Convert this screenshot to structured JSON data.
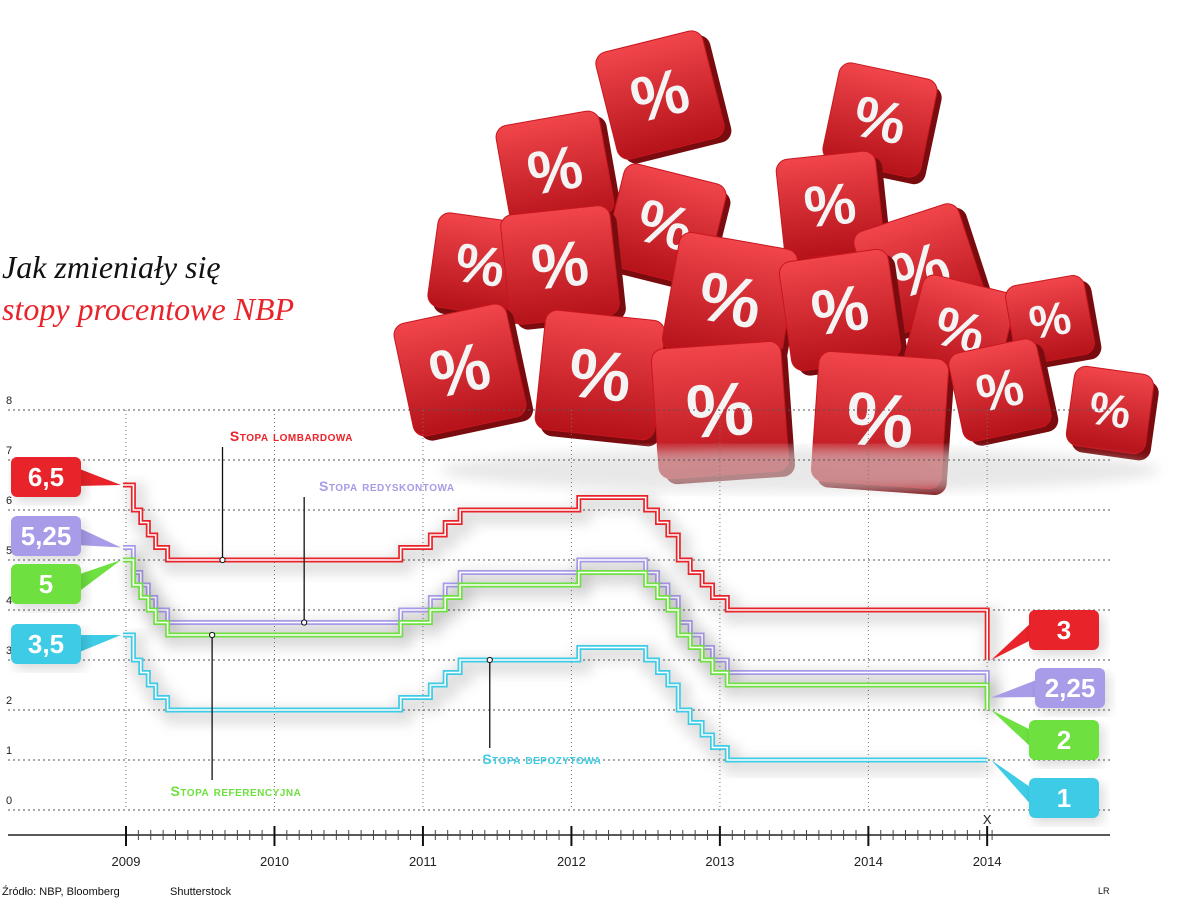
{
  "title_line1": "Jak zmieniały się",
  "title_line2": "stopy procentowe NBP",
  "source": "Źródło: NBP, Bloomberg",
  "photo_credit": "Shutterstock",
  "author_mark": "LR",
  "decoration": {
    "icon": "percent-dice-pile",
    "symbol": "%",
    "color": "#e8232a"
  },
  "chart_data": {
    "type": "line",
    "title": "Jak zmieniały się stopy procentowe NBP",
    "xlabel": "",
    "ylabel": "",
    "ylim": [
      0,
      8
    ],
    "xlim": [
      2009.0,
      2014.9
    ],
    "grid": true,
    "yticks": [
      "0",
      "1",
      "2",
      "3",
      "4",
      "5",
      "6",
      "7",
      "8"
    ],
    "xticks": [
      {
        "x": 2009.0,
        "label": "2009",
        "top": ""
      },
      {
        "x": 2010.0,
        "label": "2010",
        "top": ""
      },
      {
        "x": 2011.0,
        "label": "2011",
        "top": ""
      },
      {
        "x": 2012.0,
        "label": "2012",
        "top": ""
      },
      {
        "x": 2013.0,
        "label": "2013",
        "top": ""
      },
      {
        "x": 2014.0,
        "label": "2014",
        "top": ""
      },
      {
        "x": 2014.8,
        "label": "2014",
        "top": "X"
      }
    ],
    "series": [
      {
        "name": "Stopa lombardowa",
        "color": "#e8232a",
        "start_label": "6,5",
        "end_label": "3",
        "points": [
          [
            2008.98,
            6.5
          ],
          [
            2009.05,
            6.5
          ],
          [
            2009.05,
            6.0
          ],
          [
            2009.1,
            6.0
          ],
          [
            2009.1,
            5.75
          ],
          [
            2009.15,
            5.75
          ],
          [
            2009.15,
            5.5
          ],
          [
            2009.2,
            5.5
          ],
          [
            2009.2,
            5.25
          ],
          [
            2009.28,
            5.25
          ],
          [
            2009.28,
            5.0
          ],
          [
            2009.43,
            5.0
          ],
          [
            2009.43,
            5.0
          ],
          [
            2010.85,
            5.0
          ],
          [
            2010.85,
            5.25
          ],
          [
            2011.05,
            5.25
          ],
          [
            2011.05,
            5.5
          ],
          [
            2011.15,
            5.5
          ],
          [
            2011.15,
            5.75
          ],
          [
            2011.25,
            5.75
          ],
          [
            2011.25,
            6.0
          ],
          [
            2012.05,
            6.0
          ],
          [
            2012.05,
            6.25
          ],
          [
            2012.5,
            6.25
          ],
          [
            2012.5,
            6.0
          ],
          [
            2012.58,
            6.0
          ],
          [
            2012.58,
            5.75
          ],
          [
            2012.65,
            5.75
          ],
          [
            2012.65,
            5.5
          ],
          [
            2012.72,
            5.5
          ],
          [
            2012.72,
            5.0
          ],
          [
            2012.8,
            5.0
          ],
          [
            2012.8,
            4.75
          ],
          [
            2012.88,
            4.75
          ],
          [
            2012.88,
            4.5
          ],
          [
            2012.95,
            4.5
          ],
          [
            2012.95,
            4.25
          ],
          [
            2013.05,
            4.25
          ],
          [
            2013.05,
            4.0
          ],
          [
            2013.1,
            4.0
          ],
          [
            2014.8,
            4.0
          ],
          [
            2014.8,
            3.0
          ]
        ],
        "label_point": [
          2009.65,
          5.0
        ],
        "label_pos": [
          2009.7,
          7.38
        ]
      },
      {
        "name": "Stopa redyskontowa",
        "color": "#a89be8",
        "start_label": "5,25",
        "end_label": "2,25",
        "points": [
          [
            2008.98,
            5.25
          ],
          [
            2009.05,
            5.25
          ],
          [
            2009.05,
            4.75
          ],
          [
            2009.1,
            4.75
          ],
          [
            2009.1,
            4.5
          ],
          [
            2009.15,
            4.5
          ],
          [
            2009.15,
            4.25
          ],
          [
            2009.2,
            4.25
          ],
          [
            2009.2,
            4.0
          ],
          [
            2009.28,
            4.0
          ],
          [
            2009.28,
            3.75
          ],
          [
            2010.85,
            3.75
          ],
          [
            2010.85,
            4.0
          ],
          [
            2011.05,
            4.0
          ],
          [
            2011.05,
            4.25
          ],
          [
            2011.15,
            4.25
          ],
          [
            2011.15,
            4.5
          ],
          [
            2011.25,
            4.5
          ],
          [
            2011.25,
            4.75
          ],
          [
            2012.05,
            4.75
          ],
          [
            2012.05,
            5.0
          ],
          [
            2012.5,
            5.0
          ],
          [
            2012.5,
            4.75
          ],
          [
            2012.58,
            4.75
          ],
          [
            2012.58,
            4.5
          ],
          [
            2012.65,
            4.5
          ],
          [
            2012.65,
            4.25
          ],
          [
            2012.72,
            4.25
          ],
          [
            2012.72,
            3.75
          ],
          [
            2012.8,
            3.75
          ],
          [
            2012.8,
            3.5
          ],
          [
            2012.88,
            3.5
          ],
          [
            2012.88,
            3.25
          ],
          [
            2012.95,
            3.25
          ],
          [
            2012.95,
            3.0
          ],
          [
            2013.05,
            3.0
          ],
          [
            2013.05,
            2.75
          ],
          [
            2013.1,
            2.75
          ],
          [
            2014.8,
            2.75
          ],
          [
            2014.8,
            2.25
          ]
        ],
        "label_point": [
          2010.2,
          3.75
        ],
        "label_pos": [
          2010.3,
          6.38
        ]
      },
      {
        "name": "Stopa referencyjna",
        "color": "#6ee040",
        "start_label": "5",
        "end_label": "2",
        "points": [
          [
            2008.98,
            5.0
          ],
          [
            2009.05,
            5.0
          ],
          [
            2009.05,
            4.5
          ],
          [
            2009.1,
            4.5
          ],
          [
            2009.1,
            4.25
          ],
          [
            2009.15,
            4.25
          ],
          [
            2009.15,
            4.0
          ],
          [
            2009.2,
            4.0
          ],
          [
            2009.2,
            3.75
          ],
          [
            2009.28,
            3.75
          ],
          [
            2009.28,
            3.5
          ],
          [
            2010.85,
            3.5
          ],
          [
            2010.85,
            3.75
          ],
          [
            2011.05,
            3.75
          ],
          [
            2011.05,
            4.0
          ],
          [
            2011.15,
            4.0
          ],
          [
            2011.15,
            4.25
          ],
          [
            2011.25,
            4.25
          ],
          [
            2011.25,
            4.5
          ],
          [
            2012.05,
            4.5
          ],
          [
            2012.05,
            4.75
          ],
          [
            2012.5,
            4.75
          ],
          [
            2012.5,
            4.5
          ],
          [
            2012.58,
            4.5
          ],
          [
            2012.58,
            4.25
          ],
          [
            2012.65,
            4.25
          ],
          [
            2012.65,
            4.0
          ],
          [
            2012.72,
            4.0
          ],
          [
            2012.72,
            3.5
          ],
          [
            2012.8,
            3.5
          ],
          [
            2012.8,
            3.25
          ],
          [
            2012.88,
            3.25
          ],
          [
            2012.88,
            3.0
          ],
          [
            2012.95,
            3.0
          ],
          [
            2012.95,
            2.75
          ],
          [
            2013.05,
            2.75
          ],
          [
            2013.05,
            2.5
          ],
          [
            2013.1,
            2.5
          ],
          [
            2014.8,
            2.5
          ],
          [
            2014.8,
            2.0
          ]
        ],
        "label_point": [
          2009.58,
          3.5
        ],
        "label_pos": [
          2009.3,
          0.28
        ]
      },
      {
        "name": "Stopa depozytowa",
        "color": "#3ecbe6",
        "start_label": "3,5",
        "end_label": "1",
        "points": [
          [
            2008.98,
            3.5
          ],
          [
            2009.05,
            3.5
          ],
          [
            2009.05,
            3.0
          ],
          [
            2009.1,
            3.0
          ],
          [
            2009.1,
            2.75
          ],
          [
            2009.15,
            2.75
          ],
          [
            2009.15,
            2.5
          ],
          [
            2009.2,
            2.5
          ],
          [
            2009.2,
            2.25
          ],
          [
            2009.28,
            2.25
          ],
          [
            2009.28,
            2.0
          ],
          [
            2010.85,
            2.0
          ],
          [
            2010.85,
            2.25
          ],
          [
            2011.05,
            2.25
          ],
          [
            2011.05,
            2.5
          ],
          [
            2011.15,
            2.5
          ],
          [
            2011.15,
            2.75
          ],
          [
            2011.25,
            2.75
          ],
          [
            2011.25,
            3.0
          ],
          [
            2012.05,
            3.0
          ],
          [
            2012.05,
            3.25
          ],
          [
            2012.5,
            3.25
          ],
          [
            2012.5,
            3.0
          ],
          [
            2012.58,
            3.0
          ],
          [
            2012.58,
            2.75
          ],
          [
            2012.65,
            2.75
          ],
          [
            2012.65,
            2.5
          ],
          [
            2012.72,
            2.5
          ],
          [
            2012.72,
            2.0
          ],
          [
            2012.8,
            2.0
          ],
          [
            2012.8,
            1.75
          ],
          [
            2012.88,
            1.75
          ],
          [
            2012.88,
            1.5
          ],
          [
            2012.95,
            1.5
          ],
          [
            2012.95,
            1.25
          ],
          [
            2013.05,
            1.25
          ],
          [
            2013.05,
            1.0
          ],
          [
            2013.1,
            1.0
          ],
          [
            2014.8,
            1.0
          ]
        ],
        "label_point": [
          2011.45,
          3.0
        ],
        "label_pos": [
          2011.4,
          0.92
        ]
      }
    ]
  }
}
